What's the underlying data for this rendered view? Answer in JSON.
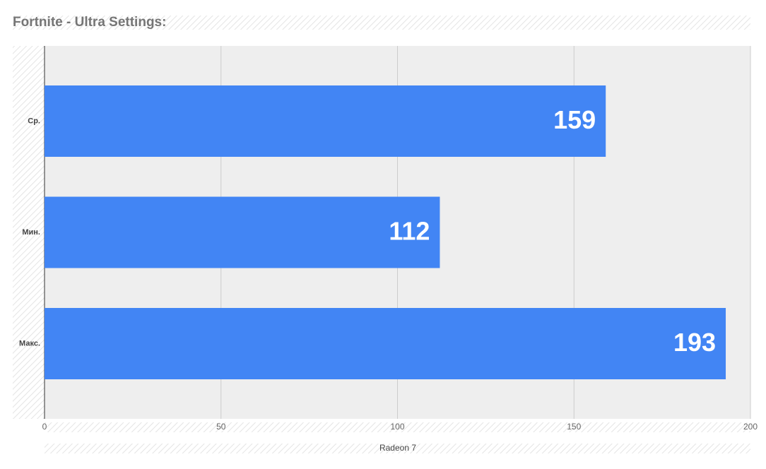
{
  "chart_data": {
    "type": "bar",
    "orientation": "horizontal",
    "title": "Fortnite - Ultra Settings:",
    "x_label": "Radeon 7",
    "categories": [
      "Ср.",
      "Мин.",
      "Макс."
    ],
    "values": [
      159,
      112,
      193
    ],
    "color": "#4285f4",
    "xlim": [
      0,
      200
    ],
    "xticks": [
      0,
      50,
      100,
      150,
      200
    ],
    "grid": true
  }
}
